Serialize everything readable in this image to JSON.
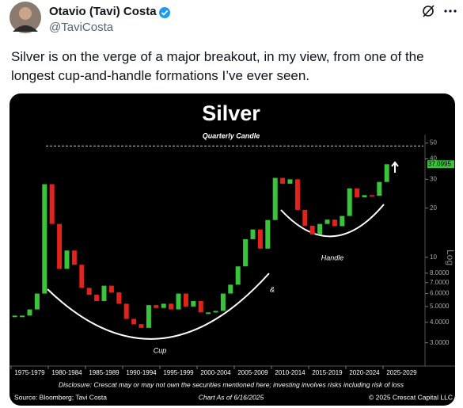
{
  "header": {
    "name": "Otavio (Tavi) Costa",
    "handle": "@TaviCosta"
  },
  "tweet_text": "Silver is on the verge of a major breakout, in my view, from one of the longest cup-and-handle formations I’ve ever seen.",
  "chart_data": {
    "type": "candlestick",
    "title": "Silver",
    "subtitle": "Quarterly Candle",
    "x": [
      1975,
      1976,
      1977,
      1978,
      1979,
      1980,
      1981,
      1982,
      1983,
      1984,
      1985,
      1986,
      1987,
      1988,
      1989,
      1990,
      1991,
      1992,
      1993,
      1994,
      1995,
      1996,
      1997,
      1998,
      1999,
      2000,
      2001,
      2002,
      2003,
      2004,
      2005,
      2006,
      2007,
      2008,
      2009,
      2010,
      2011,
      2012,
      2013,
      2014,
      2015,
      2016,
      2017,
      2018,
      2019,
      2020,
      2021,
      2022,
      2023,
      2024,
      2025
    ],
    "values": [
      4.4,
      4.4,
      4.8,
      6.0,
      28,
      16,
      8.5,
      11,
      9,
      6.5,
      5.9,
      5.4,
      6.7,
      6.1,
      5.2,
      4.2,
      3.9,
      3.7,
      5.1,
      4.9,
      5.2,
      4.8,
      6.0,
      5.0,
      5.4,
      4.6,
      4.6,
      4.7,
      6.0,
      6.8,
      8.8,
      12.9,
      14.8,
      11.3,
      16.9,
      30.6,
      28.2,
      30.0,
      19.5,
      15.6,
      13.8,
      16.0,
      17.0,
      15.5,
      17.9,
      26.4,
      23.3,
      24.0,
      23.8,
      28.9,
      37.0995
    ],
    "up_color": "#39c43b",
    "down_color": "#e3221c",
    "categories": [
      "1975-1979",
      "1980-1984",
      "1985-1989",
      "1990-1994",
      "1995-1999",
      "2000-2004",
      "2005-2009",
      "2010-2014",
      "2015-2019",
      "2020-2024",
      "2025-2029"
    ],
    "log_scale": true,
    "ylim": [
      2.5,
      55
    ],
    "yticks": [
      50,
      40,
      30,
      20,
      10,
      {
        "value": 8,
        "label": "8.0000"
      },
      {
        "value": 7,
        "label": "7.0000"
      },
      {
        "value": 6,
        "label": "6.0000"
      },
      {
        "value": 5,
        "label": "5.0000"
      },
      {
        "value": 4,
        "label": "4.0000"
      },
      {
        "value": 3,
        "label": "3.0000"
      }
    ],
    "resistance_level": 48,
    "axis_label": "Log",
    "annotations": {
      "cup": "Cup",
      "handle": "Handle",
      "amp": "&"
    },
    "disclosure": "Disclosure: Crescat may or may not own the securities mentioned here; investing involves risks including risk of loss",
    "source": "Source: Bloomberg; Tavi Costa",
    "as_of": "Chart As of 6/16/2025",
    "copyright": "© 2025 Crescat Capital LLC"
  }
}
